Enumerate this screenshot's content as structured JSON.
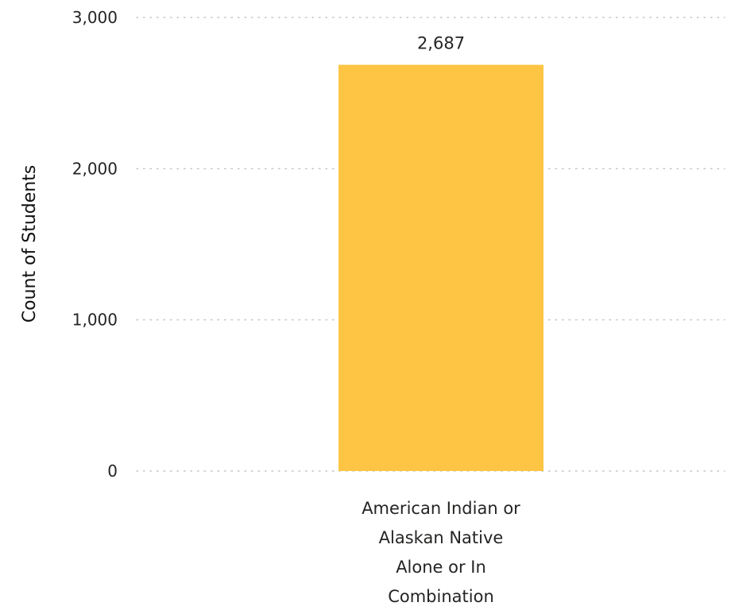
{
  "chart_data": {
    "type": "bar",
    "title": "",
    "xlabel": "",
    "ylabel": "Count of Students",
    "categories": [
      "American Indian or Alaskan Native Alone or In Combination"
    ],
    "category_label_lines": [
      [
        "American Indian or",
        "Alaskan Native",
        "Alone or In",
        "Combination"
      ]
    ],
    "values": [
      2687
    ],
    "data_labels": [
      "2,687"
    ],
    "ylim": [
      0,
      3000
    ],
    "yticks": [
      0,
      1000,
      2000,
      3000
    ],
    "ytick_labels": [
      "0",
      "1,000",
      "2,000",
      "3,000"
    ],
    "grid": true,
    "grid_style": "dotted",
    "legend": "none",
    "colors": {
      "bar": "#FDC543",
      "grid": "#C8C6C4",
      "text": "#252423"
    }
  }
}
